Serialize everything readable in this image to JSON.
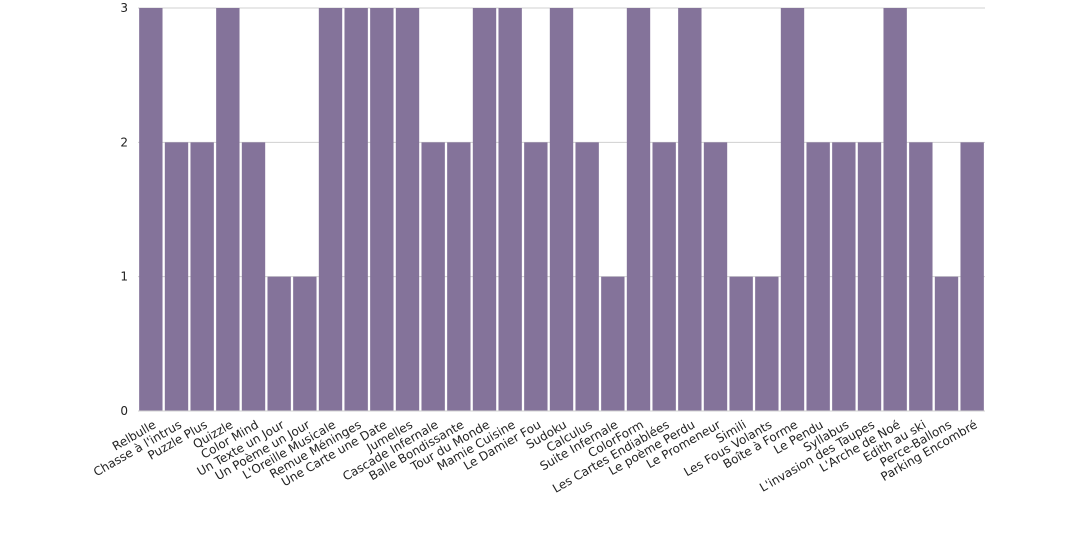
{
  "chart_data": {
    "type": "bar",
    "title": "",
    "xlabel": "",
    "ylabel": "",
    "ylim": [
      0,
      3
    ],
    "yticks": [
      0,
      1,
      2,
      3
    ],
    "grid": true,
    "bar_color": "#84739A",
    "grid_color": "#d0d0d0",
    "categories": [
      "Relbulle",
      "Chasse à l'intrus",
      "Puzzle Plus",
      "Quizzle",
      "Color Mind",
      "Un Texte un Jour",
      "Un Poème un Jour",
      "L'Oreille Musicale",
      "Remue Méninges",
      "Une Carte une Date",
      "Jumelles",
      "Cascade Infernale",
      "Balle Bondissante",
      "Tour du Monde",
      "Mamie Cuisine",
      "Le Damier Fou",
      "Sudoku",
      "Calculus",
      "Suite Infernale",
      "ColorForm",
      "Les Cartes Endiablées",
      "Le poème Perdu",
      "Le Promeneur",
      "Simili",
      "Les Fous Volants",
      "Boîte à Forme",
      "Le Pendu",
      "Syllabus",
      "L'invasion des Taupes",
      "L'Arche de Noé",
      "Edith au ski",
      "Perce-Ballons",
      "Parking Encombré"
    ],
    "values": [
      3,
      2,
      2,
      3,
      2,
      1,
      1,
      3,
      3,
      3,
      3,
      2,
      2,
      3,
      3,
      2,
      3,
      2,
      1,
      3,
      2,
      3,
      2,
      1,
      1,
      3,
      2,
      2,
      2,
      3,
      2,
      1,
      2
    ]
  }
}
